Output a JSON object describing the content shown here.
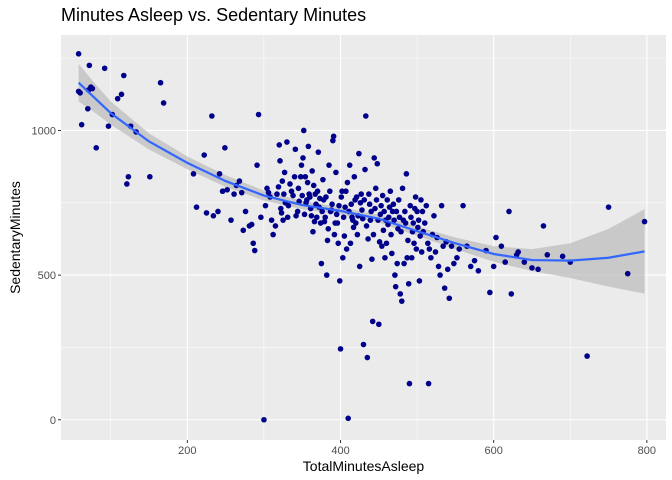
{
  "chart_data": {
    "type": "scatter",
    "title": "Minutes Asleep vs. Sedentary Minutes",
    "xlabel": "TotalMinutesAsleep",
    "ylabel": "SedentaryMinutes",
    "xlim": [
      35,
      825
    ],
    "ylim": [
      -70,
      1330
    ],
    "x_ticks": [
      200,
      400,
      600,
      800
    ],
    "y_ticks": [
      0,
      500,
      1000
    ],
    "x_tick_labels": [
      "200",
      "400",
      "600",
      "800"
    ],
    "y_tick_labels": [
      "0",
      "500",
      "1000"
    ],
    "grid": true,
    "colors": {
      "panel_background": "#ebebeb",
      "grid_major": "#ffffff",
      "points": "#00008b",
      "smooth_line": "#3366ff",
      "confidence_band": "#bdbdbd"
    },
    "points": [
      [
        58,
        1265
      ],
      [
        58,
        1135
      ],
      [
        60,
        1130
      ],
      [
        62,
        1020
      ],
      [
        70,
        1075
      ],
      [
        71,
        1140
      ],
      [
        72,
        1225
      ],
      [
        74,
        1150
      ],
      [
        76,
        1145
      ],
      [
        81,
        940
      ],
      [
        92,
        1215
      ],
      [
        97,
        1015
      ],
      [
        102,
        1055
      ],
      [
        109,
        1110
      ],
      [
        114,
        1125
      ],
      [
        117,
        1190
      ],
      [
        121,
        815
      ],
      [
        123,
        840
      ],
      [
        126,
        1015
      ],
      [
        133,
        995
      ],
      [
        151,
        840
      ],
      [
        165,
        1165
      ],
      [
        169,
        1095
      ],
      [
        208,
        850
      ],
      [
        212,
        735
      ],
      [
        222,
        915
      ],
      [
        225,
        715
      ],
      [
        232,
        1050
      ],
      [
        234,
        705
      ],
      [
        240,
        720
      ],
      [
        242,
        850
      ],
      [
        246,
        790
      ],
      [
        249,
        940
      ],
      [
        252,
        795
      ],
      [
        257,
        690
      ],
      [
        261,
        780
      ],
      [
        264,
        810
      ],
      [
        268,
        825
      ],
      [
        271,
        785
      ],
      [
        273,
        655
      ],
      [
        276,
        720
      ],
      [
        281,
        670
      ],
      [
        284,
        675
      ],
      [
        286,
        610
      ],
      [
        288,
        585
      ],
      [
        291,
        880
      ],
      [
        293,
        1055
      ],
      [
        296,
        700
      ],
      [
        300,
        0
      ],
      [
        302,
        740
      ],
      [
        304,
        800
      ],
      [
        306,
        785
      ],
      [
        308,
        770
      ],
      [
        310,
        690
      ],
      [
        312,
        640
      ],
      [
        315,
        670
      ],
      [
        317,
        780
      ],
      [
        319,
        805
      ],
      [
        320,
        950
      ],
      [
        321,
        895
      ],
      [
        322,
        730
      ],
      [
        323,
        715
      ],
      [
        324,
        825
      ],
      [
        325,
        690
      ],
      [
        326,
        780
      ],
      [
        327,
        855
      ],
      [
        328,
        750
      ],
      [
        330,
        960
      ],
      [
        331,
        700
      ],
      [
        332,
        740
      ],
      [
        334,
        815
      ],
      [
        336,
        790
      ],
      [
        338,
        775
      ],
      [
        340,
        840
      ],
      [
        341,
        935
      ],
      [
        342,
        705
      ],
      [
        344,
        720
      ],
      [
        345,
        800
      ],
      [
        346,
        755
      ],
      [
        348,
        840
      ],
      [
        349,
        880
      ],
      [
        350,
        775
      ],
      [
        351,
        905
      ],
      [
        352,
        1000
      ],
      [
        353,
        710
      ],
      [
        354,
        840
      ],
      [
        355,
        750
      ],
      [
        356,
        760
      ],
      [
        357,
        820
      ],
      [
        358,
        945
      ],
      [
        359,
        780
      ],
      [
        360,
        770
      ],
      [
        361,
        730
      ],
      [
        362,
        705
      ],
      [
        363,
        860
      ],
      [
        364,
        650
      ],
      [
        365,
        810
      ],
      [
        366,
        685
      ],
      [
        367,
        780
      ],
      [
        368,
        745
      ],
      [
        369,
        700
      ],
      [
        370,
        790
      ],
      [
        371,
        925
      ],
      [
        372,
        735
      ],
      [
        373,
        765
      ],
      [
        374,
        680
      ],
      [
        375,
        540
      ],
      [
        376,
        720
      ],
      [
        377,
        830
      ],
      [
        378,
        760
      ],
      [
        379,
        685
      ],
      [
        380,
        700
      ],
      [
        381,
        770
      ],
      [
        382,
        500
      ],
      [
        383,
        620
      ],
      [
        384,
        660
      ],
      [
        385,
        880
      ],
      [
        386,
        790
      ],
      [
        387,
        720
      ],
      [
        388,
        725
      ],
      [
        389,
        745
      ],
      [
        390,
        965
      ],
      [
        391,
        980
      ],
      [
        392,
        640
      ],
      [
        393,
        680
      ],
      [
        394,
        855
      ],
      [
        395,
        710
      ],
      [
        396,
        680
      ],
      [
        397,
        610
      ],
      [
        398,
        740
      ],
      [
        399,
        480
      ],
      [
        400,
        245
      ],
      [
        401,
        770
      ],
      [
        402,
        790
      ],
      [
        403,
        560
      ],
      [
        404,
        700
      ],
      [
        405,
        635
      ],
      [
        406,
        735
      ],
      [
        407,
        790
      ],
      [
        408,
        590
      ],
      [
        409,
        820
      ],
      [
        410,
        5
      ],
      [
        411,
        720
      ],
      [
        412,
        880
      ],
      [
        413,
        610
      ],
      [
        414,
        745
      ],
      [
        415,
        700
      ],
      [
        416,
        690
      ],
      [
        417,
        665
      ],
      [
        418,
        840
      ],
      [
        419,
        760
      ],
      [
        420,
        680
      ],
      [
        421,
        770
      ],
      [
        422,
        640
      ],
      [
        423,
        705
      ],
      [
        424,
        920
      ],
      [
        425,
        530
      ],
      [
        426,
        750
      ],
      [
        427,
        780
      ],
      [
        428,
        725
      ],
      [
        429,
        695
      ],
      [
        430,
        260
      ],
      [
        431,
        760
      ],
      [
        432,
        865
      ],
      [
        433,
        1050
      ],
      [
        434,
        670
      ],
      [
        435,
        215
      ],
      [
        436,
        625
      ],
      [
        437,
        780
      ],
      [
        438,
        745
      ],
      [
        439,
        690
      ],
      [
        440,
        720
      ],
      [
        441,
        555
      ],
      [
        442,
        340
      ],
      [
        443,
        640
      ],
      [
        444,
        905
      ],
      [
        445,
        730
      ],
      [
        446,
        800
      ],
      [
        447,
        760
      ],
      [
        448,
        885
      ],
      [
        449,
        690
      ],
      [
        450,
        330
      ],
      [
        451,
        615
      ],
      [
        452,
        710
      ],
      [
        453,
        740
      ],
      [
        454,
        600
      ],
      [
        455,
        775
      ],
      [
        456,
        655
      ],
      [
        457,
        720
      ],
      [
        458,
        560
      ],
      [
        459,
        690
      ],
      [
        460,
        610
      ],
      [
        461,
        760
      ],
      [
        462,
        675
      ],
      [
        463,
        700
      ],
      [
        464,
        735
      ],
      [
        465,
        790
      ],
      [
        466,
        640
      ],
      [
        467,
        575
      ],
      [
        468,
        720
      ],
      [
        469,
        745
      ],
      [
        470,
        690
      ],
      [
        471,
        500
      ],
      [
        472,
        460
      ],
      [
        473,
        720
      ],
      [
        474,
        540
      ],
      [
        475,
        660
      ],
      [
        476,
        760
      ],
      [
        477,
        700
      ],
      [
        478,
        435
      ],
      [
        479,
        650
      ],
      [
        480,
        410
      ],
      [
        481,
        800
      ],
      [
        482,
        690
      ],
      [
        483,
        540
      ],
      [
        484,
        720
      ],
      [
        485,
        680
      ],
      [
        486,
        850
      ],
      [
        487,
        560
      ],
      [
        488,
        620
      ],
      [
        489,
        470
      ],
      [
        490,
        125
      ],
      [
        491,
        740
      ],
      [
        492,
        700
      ],
      [
        493,
        560
      ],
      [
        494,
        650
      ],
      [
        495,
        680
      ],
      [
        496,
        610
      ],
      [
        497,
        730
      ],
      [
        498,
        770
      ],
      [
        499,
        590
      ],
      [
        500,
        720
      ],
      [
        501,
        665
      ],
      [
        502,
        690
      ],
      [
        503,
        480
      ],
      [
        504,
        635
      ],
      [
        505,
        760
      ],
      [
        506,
        580
      ],
      [
        507,
        720
      ],
      [
        508,
        650
      ],
      [
        510,
        680
      ],
      [
        512,
        740
      ],
      [
        514,
        610
      ],
      [
        515,
        125
      ],
      [
        516,
        590
      ],
      [
        518,
        560
      ],
      [
        520,
        640
      ],
      [
        522,
        705
      ],
      [
        524,
        580
      ],
      [
        526,
        630
      ],
      [
        528,
        530
      ],
      [
        530,
        500
      ],
      [
        532,
        740
      ],
      [
        534,
        600
      ],
      [
        536,
        455
      ],
      [
        538,
        615
      ],
      [
        540,
        520
      ],
      [
        542,
        420
      ],
      [
        545,
        600
      ],
      [
        548,
        540
      ],
      [
        552,
        560
      ],
      [
        555,
        590
      ],
      [
        560,
        740
      ],
      [
        565,
        600
      ],
      [
        570,
        530
      ],
      [
        575,
        550
      ],
      [
        580,
        515
      ],
      [
        590,
        585
      ],
      [
        595,
        440
      ],
      [
        600,
        530
      ],
      [
        603,
        630
      ],
      [
        610,
        600
      ],
      [
        615,
        545
      ],
      [
        620,
        720
      ],
      [
        623,
        435
      ],
      [
        630,
        570
      ],
      [
        632,
        580
      ],
      [
        640,
        545
      ],
      [
        650,
        525
      ],
      [
        658,
        520
      ],
      [
        665,
        670
      ],
      [
        670,
        570
      ],
      [
        690,
        565
      ],
      [
        700,
        545
      ],
      [
        722,
        220
      ],
      [
        750,
        735
      ],
      [
        775,
        505
      ],
      [
        797,
        685
      ]
    ],
    "smooth_fit": [
      [
        58,
        1165
      ],
      [
        80,
        1110
      ],
      [
        100,
        1060
      ],
      [
        150,
        962
      ],
      [
        200,
        888
      ],
      [
        250,
        825
      ],
      [
        300,
        775
      ],
      [
        350,
        742
      ],
      [
        400,
        722
      ],
      [
        450,
        695
      ],
      [
        500,
        652
      ],
      [
        550,
        610
      ],
      [
        600,
        573
      ],
      [
        650,
        552
      ],
      [
        700,
        550
      ],
      [
        750,
        560
      ],
      [
        797,
        582
      ]
    ],
    "ci_upper": [
      [
        58,
        1230
      ],
      [
        80,
        1160
      ],
      [
        100,
        1100
      ],
      [
        150,
        990
      ],
      [
        200,
        910
      ],
      [
        250,
        845
      ],
      [
        300,
        792
      ],
      [
        350,
        756
      ],
      [
        400,
        735
      ],
      [
        450,
        708
      ],
      [
        500,
        668
      ],
      [
        550,
        630
      ],
      [
        600,
        600
      ],
      [
        650,
        590
      ],
      [
        700,
        610
      ],
      [
        750,
        660
      ],
      [
        797,
        728
      ]
    ],
    "ci_lower": [
      [
        58,
        1100
      ],
      [
        80,
        1060
      ],
      [
        100,
        1020
      ],
      [
        150,
        934
      ],
      [
        200,
        866
      ],
      [
        250,
        805
      ],
      [
        300,
        758
      ],
      [
        350,
        728
      ],
      [
        400,
        709
      ],
      [
        450,
        682
      ],
      [
        500,
        636
      ],
      [
        550,
        590
      ],
      [
        600,
        546
      ],
      [
        650,
        514
      ],
      [
        700,
        490
      ],
      [
        750,
        460
      ],
      [
        797,
        436
      ]
    ]
  }
}
